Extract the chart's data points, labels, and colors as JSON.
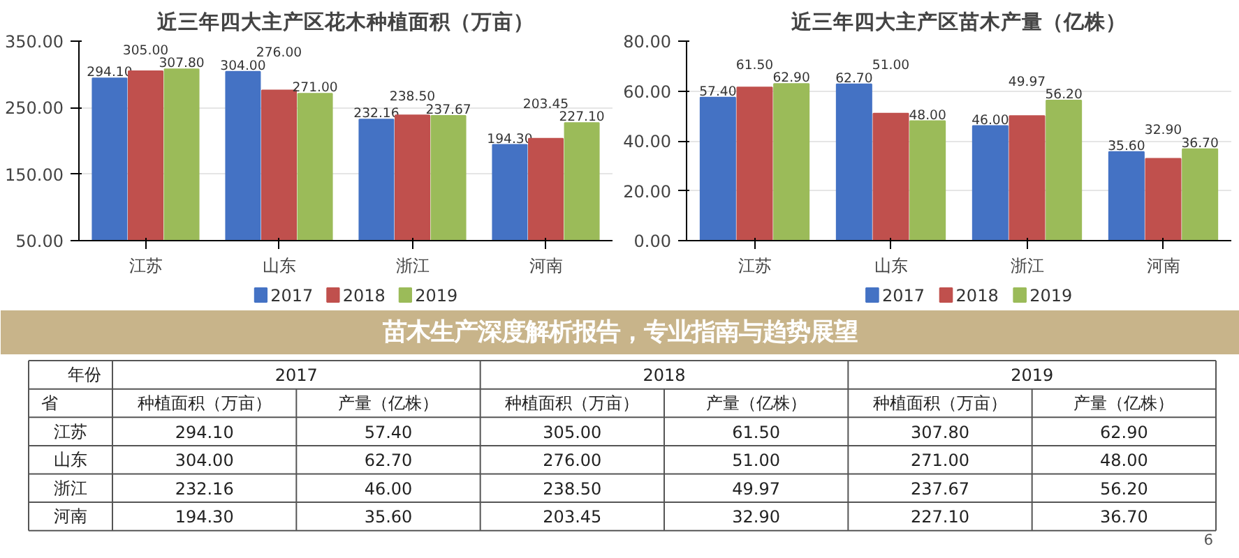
{
  "chart_data": [
    {
      "type": "bar",
      "title": "近三年四大主产区花木种植面积（万亩）",
      "categories": [
        "江苏",
        "山东",
        "浙江",
        "河南"
      ],
      "series": [
        {
          "name": "2017",
          "color": "#4472c4",
          "values": [
            294.1,
            304.0,
            232.16,
            194.3
          ],
          "value_labels": [
            "294.10",
            "304.00",
            "232.16",
            "194.30"
          ]
        },
        {
          "name": "2018",
          "color": "#c0504d",
          "values": [
            305.0,
            276.0,
            238.5,
            203.45
          ],
          "value_labels": [
            "305.00",
            "276.00",
            "238.50",
            "203.45"
          ]
        },
        {
          "name": "2019",
          "color": "#9bbb59",
          "values": [
            307.8,
            271.0,
            237.67,
            227.1
          ],
          "value_labels": [
            "307.80",
            "271.00",
            "237.67",
            "227.10"
          ]
        }
      ],
      "ylim": [
        50,
        350
      ],
      "yticks": [
        {
          "value": 50,
          "label": "50.00"
        },
        {
          "value": 150,
          "label": "150.00"
        },
        {
          "value": 250,
          "label": "250.00"
        },
        {
          "value": 350,
          "label": "350.00"
        }
      ],
      "grid": "y",
      "legend": "bottom",
      "annotations": [
        "苗木生产深度解析报告，专业指南与趋势展望",
        "年份",
        "省",
        "种植面积（万亩）"
      ]
    },
    {
      "type": "bar",
      "title": "近三年四大主产区苗木产量（亿株）",
      "categories": [
        "江苏",
        "山东",
        "浙江",
        "河南"
      ],
      "series": [
        {
          "name": "2017",
          "color": "#4472c4",
          "values": [
            57.4,
            62.7,
            46.0,
            35.6
          ],
          "value_labels": [
            "57.40",
            "62.70",
            "46.00",
            "35.60"
          ]
        },
        {
          "name": "2018",
          "color": "#c0504d",
          "values": [
            61.5,
            51.0,
            49.97,
            32.9
          ],
          "value_labels": [
            "61.50",
            "51.00",
            "49.97",
            "32.90"
          ]
        },
        {
          "name": "2019",
          "color": "#9bbb59",
          "values": [
            62.9,
            48.0,
            56.2,
            36.7
          ],
          "value_labels": [
            "62.90",
            "48.00",
            "56.20",
            "36.70"
          ]
        }
      ],
      "ylim": [
        0,
        80
      ],
      "yticks": [
        {
          "value": 0,
          "label": "0.00"
        },
        {
          "value": 20,
          "label": "20.00"
        },
        {
          "value": 40,
          "label": "40.00"
        },
        {
          "value": 60,
          "label": "60.00"
        },
        {
          "value": 80,
          "label": "80.00"
        }
      ],
      "grid": "y",
      "legend": "bottom",
      "annotations": [
        "产量（亿株）",
        "6"
      ]
    }
  ]
}
